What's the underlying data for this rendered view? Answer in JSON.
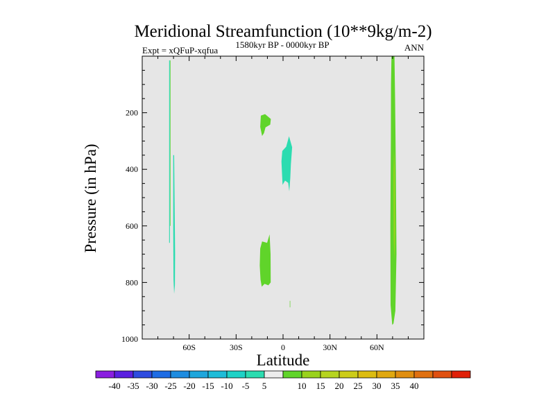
{
  "chart_data": {
    "type": "contour",
    "title": "Meridional Streamfunction (10**9kg/m-2)",
    "subtitle_left": "Expt = xQFuP-xqfua",
    "subtitle_center": "1580kyr BP - 0000kyr BP",
    "subtitle_right": "ANN",
    "xlabel": "Latitude",
    "ylabel": "Pressure (in hPa)",
    "xlim": [
      -90,
      90
    ],
    "ylim": [
      1000,
      0
    ],
    "y_ticks": [
      {
        "value": 200,
        "label": "200"
      },
      {
        "value": 400,
        "label": "400"
      },
      {
        "value": 600,
        "label": "600"
      },
      {
        "value": 800,
        "label": "800"
      },
      {
        "value": 1000,
        "label": "1000"
      }
    ],
    "x_ticks": [
      {
        "value": -60,
        "label": "60S"
      },
      {
        "value": -30,
        "label": "30S"
      },
      {
        "value": 0,
        "label": "0"
      },
      {
        "value": 30,
        "label": "30N"
      },
      {
        "value": 60,
        "label": "60N"
      }
    ],
    "background_color": "#e6e6e6",
    "contour_regions": [
      {
        "name": "contour-strip-neg-73",
        "band": "-10 to -5",
        "color": "#2cdcb0",
        "points": [
          [
            -72.8,
            15
          ],
          [
            -72.3,
            15
          ],
          [
            -72.3,
            660
          ],
          [
            -72.8,
            660
          ]
        ]
      },
      {
        "name": "contour-strip-pos-72",
        "band": "5 to 10",
        "color": "#60d42a",
        "points": [
          [
            -72.2,
            15
          ],
          [
            -71.9,
            15
          ],
          [
            -71.9,
            600
          ],
          [
            -72.2,
            600
          ]
        ]
      },
      {
        "name": "contour-region-neg-70",
        "band": "-10 to -5",
        "color": "#2cdcb0",
        "points": [
          [
            -70.2,
            350
          ],
          [
            -69.6,
            350
          ],
          [
            -69.3,
            520
          ],
          [
            -69.0,
            700
          ],
          [
            -69.1,
            810
          ],
          [
            -69.6,
            840
          ],
          [
            -70.0,
            790
          ],
          [
            -70.2,
            600
          ]
        ]
      },
      {
        "name": "contour-region-pos-12-upper",
        "band": "5 to 10",
        "color": "#60d42a",
        "points": [
          [
            -14.2,
            210
          ],
          [
            -11.5,
            205
          ],
          [
            -7.8,
            222
          ],
          [
            -8.2,
            242
          ],
          [
            -11.2,
            252
          ],
          [
            -12.2,
            272
          ],
          [
            -13.4,
            282
          ],
          [
            -14.6,
            250
          ]
        ]
      },
      {
        "name": "contour-region-neg-1",
        "band": "-10 to -5",
        "color": "#2cdcb0",
        "points": [
          [
            -0.5,
            335
          ],
          [
            2.0,
            320
          ],
          [
            3.8,
            283
          ],
          [
            5.8,
            322
          ],
          [
            5.0,
            382
          ],
          [
            4.6,
            432
          ],
          [
            4.0,
            478
          ],
          [
            3.3,
            448
          ],
          [
            1.3,
            440
          ],
          [
            -0.3,
            455
          ],
          [
            -0.6,
            420
          ],
          [
            -1.0,
            372
          ]
        ]
      },
      {
        "name": "contour-region-pos-12-lower",
        "band": "5 to 10",
        "color": "#60d42a",
        "points": [
          [
            -14.6,
            680
          ],
          [
            -13.4,
            655
          ],
          [
            -10.2,
            660
          ],
          [
            -8.6,
            630
          ],
          [
            -8.0,
            700
          ],
          [
            -7.9,
            800
          ],
          [
            -9.4,
            810
          ],
          [
            -11.8,
            805
          ],
          [
            -13.6,
            815
          ],
          [
            -14.4,
            790
          ],
          [
            -14.9,
            740
          ]
        ]
      },
      {
        "name": "contour-tick-pos-4",
        "band": "5 to 10",
        "color": "#60d42a",
        "points": [
          [
            4.3,
            865
          ],
          [
            4.6,
            865
          ],
          [
            4.6,
            888
          ],
          [
            4.3,
            888
          ]
        ]
      },
      {
        "name": "contour-region-pos-69",
        "band": "5 to 10",
        "color": "#60d42a",
        "points": [
          [
            69.3,
            0
          ],
          [
            71.2,
            0
          ],
          [
            71.6,
            150
          ],
          [
            72.1,
            400
          ],
          [
            72.5,
            700
          ],
          [
            71.8,
            900
          ],
          [
            70.6,
            945
          ],
          [
            69.8,
            950
          ],
          [
            68.7,
            880
          ],
          [
            68.6,
            600
          ],
          [
            68.9,
            300
          ],
          [
            69.0,
            100
          ]
        ]
      },
      {
        "name": "contour-region-pos-71-inner",
        "band": "10 to 15",
        "color": "#99d21c",
        "points": [
          [
            70.9,
            330
          ],
          [
            71.4,
            390
          ],
          [
            71.7,
            620
          ],
          [
            71.2,
            720
          ],
          [
            70.7,
            650
          ],
          [
            70.6,
            420
          ]
        ]
      }
    ],
    "colorbar": {
      "colors": [
        "#8a1ee0",
        "#5a20e0",
        "#2e4ce0",
        "#1e6ce4",
        "#1e8ce0",
        "#1ea6dc",
        "#1ebcd8",
        "#1ed2c6",
        "#2cdcb0",
        "#ececec",
        "#60d42a",
        "#99d21c",
        "#b6d420",
        "#cccc18",
        "#dcbc10",
        "#e0a810",
        "#e08e10",
        "#e07010",
        "#e05010",
        "#e02008"
      ],
      "labels": [
        "-40",
        "-35",
        "-30",
        "-25",
        "-20",
        "-15",
        "-10",
        "-5",
        "5",
        "10",
        "15",
        "20",
        "25",
        "30",
        "35",
        "40"
      ]
    }
  }
}
